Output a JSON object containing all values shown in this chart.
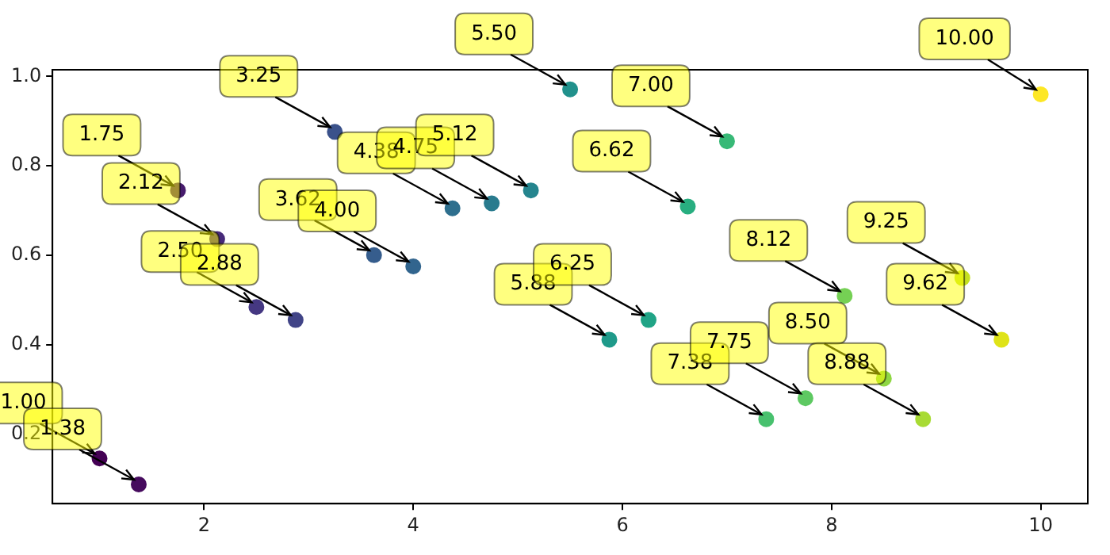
{
  "chart_data": {
    "type": "scatter",
    "xlim": [
      0.55,
      10.45
    ],
    "ylim": [
      0.044,
      1.015
    ],
    "xticks": [
      2,
      4,
      6,
      8,
      10
    ],
    "yticks": [
      0.2,
      0.4,
      0.6,
      0.8,
      {
        "value": 1,
        "label": "1.0"
      }
    ],
    "grid": false,
    "legend": false,
    "marker": "circle",
    "x": [
      1,
      1.375,
      1.75,
      2.125,
      2.5,
      2.875,
      3.25,
      3.625,
      4,
      4.375,
      4.75,
      5.125,
      5.5,
      5.875,
      6.25,
      6.625,
      7,
      7.375,
      7.75,
      8.125,
      8.5,
      8.875,
      9.25,
      9.625,
      10
    ],
    "values": [
      0.145,
      0.087,
      0.745,
      0.636,
      0.484,
      0.455,
      0.876,
      0.6,
      0.575,
      0.705,
      0.716,
      0.745,
      0.971,
      0.411,
      0.455,
      0.709,
      0.855,
      0.233,
      0.28,
      0.509,
      0.324,
      0.233,
      0.549,
      0.411,
      0.96
    ],
    "colors": [
      "#440154",
      "#460b5e",
      "#471c6d",
      "#472a7a",
      "#453882",
      "#414487",
      "#3b528b",
      "#365d8d",
      "#32658e",
      "#2e6f8e",
      "#297b8e",
      "#25858e",
      "#21918c",
      "#1f9a8a",
      "#20a486",
      "#28ae80",
      "#38b977",
      "#48c16e",
      "#5ec962",
      "#75d054",
      "#8fd744",
      "#a8db34",
      "#c5e021",
      "#dfe318",
      "#fde725"
    ],
    "annotations": [
      {
        "text": "1.00",
        "x": 1,
        "y": 0.145
      },
      {
        "text": "1.38",
        "x": 1.375,
        "y": 0.087
      },
      {
        "text": "1.75",
        "x": 1.75,
        "y": 0.745
      },
      {
        "text": "2.12",
        "x": 2.125,
        "y": 0.636
      },
      {
        "text": "2.50",
        "x": 2.5,
        "y": 0.484
      },
      {
        "text": "2.88",
        "x": 2.875,
        "y": 0.455
      },
      {
        "text": "3.25",
        "x": 3.25,
        "y": 0.876
      },
      {
        "text": "3.62",
        "x": 3.625,
        "y": 0.6
      },
      {
        "text": "4.00",
        "x": 4,
        "y": 0.575
      },
      {
        "text": "4.38",
        "x": 4.375,
        "y": 0.705
      },
      {
        "text": "4.75",
        "x": 4.75,
        "y": 0.716
      },
      {
        "text": "5.12",
        "x": 5.125,
        "y": 0.745
      },
      {
        "text": "5.50",
        "x": 5.5,
        "y": 0.971
      },
      {
        "text": "5.88",
        "x": 5.875,
        "y": 0.411
      },
      {
        "text": "6.25",
        "x": 6.25,
        "y": 0.455
      },
      {
        "text": "6.62",
        "x": 6.625,
        "y": 0.709
      },
      {
        "text": "7.00",
        "x": 7,
        "y": 0.855
      },
      {
        "text": "7.38",
        "x": 7.375,
        "y": 0.233
      },
      {
        "text": "7.75",
        "x": 7.75,
        "y": 0.28
      },
      {
        "text": "8.12",
        "x": 8.125,
        "y": 0.509
      },
      {
        "text": "8.50",
        "x": 8.5,
        "y": 0.324
      },
      {
        "text": "8.88",
        "x": 8.875,
        "y": 0.233
      },
      {
        "text": "9.25",
        "x": 9.25,
        "y": 0.549
      },
      {
        "text": "9.62",
        "x": 9.625,
        "y": 0.411
      },
      {
        "text": "10.00",
        "x": 10,
        "y": 0.96
      }
    ]
  }
}
